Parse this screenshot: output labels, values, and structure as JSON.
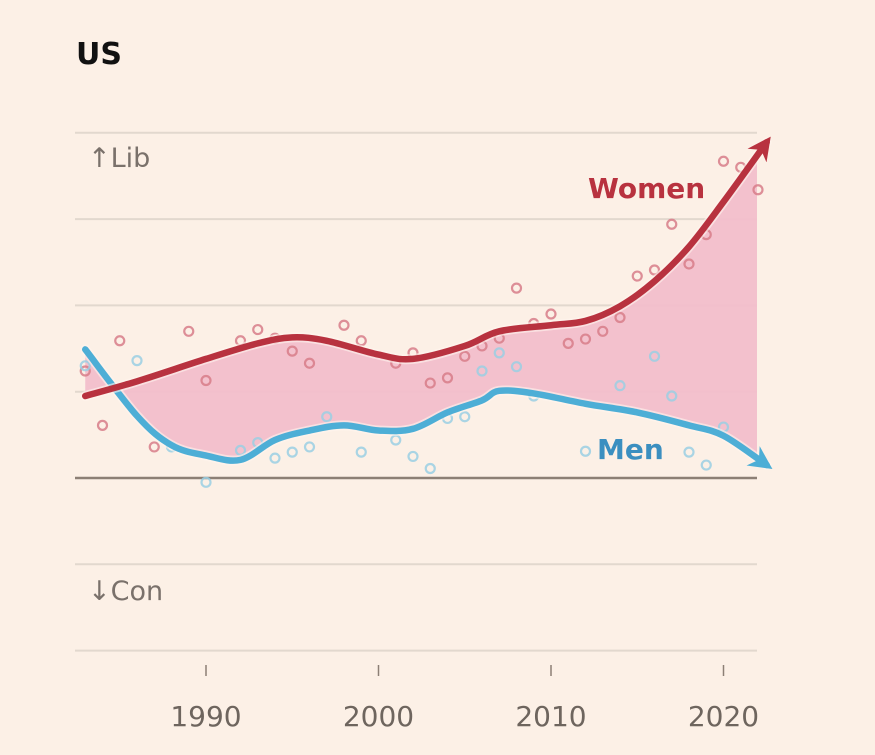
{
  "chart_data": {
    "type": "line",
    "title": "US",
    "xlabel": "",
    "ylabel": "",
    "y_top_note": "↑Lib",
    "y_bottom_note": "↓Con",
    "x_ticks": [
      1990,
      2000,
      2010,
      2020
    ],
    "x_tick_labels": [
      "1990",
      "2000",
      "2010",
      "2020"
    ],
    "xlim": [
      1982.3,
      2022.9
    ],
    "ylim": [
      -2,
      4
    ],
    "y_gridlines": [
      -2,
      -1,
      0,
      1,
      2,
      3,
      4
    ],
    "zero_line": 0,
    "grid": true,
    "legend": "inline-labels",
    "gap_fill": true,
    "colors": {
      "background": "#FCF0E6",
      "women": "#B8323F",
      "men": "#4DAED6",
      "gap_fill": "#F2BECB",
      "women_dots": "#D77C88",
      "men_dots": "#9ACFE3"
    },
    "series": [
      {
        "name": "Women",
        "label": "Women",
        "trend": [
          [
            1983,
            0.95
          ],
          [
            1986,
            1.12
          ],
          [
            1990,
            1.38
          ],
          [
            1993,
            1.56
          ],
          [
            1995,
            1.63
          ],
          [
            1997,
            1.59
          ],
          [
            2000,
            1.43
          ],
          [
            2002,
            1.38
          ],
          [
            2005,
            1.53
          ],
          [
            2007,
            1.7
          ],
          [
            2010,
            1.77
          ],
          [
            2012,
            1.82
          ],
          [
            2014,
            1.99
          ],
          [
            2016,
            2.28
          ],
          [
            2018,
            2.68
          ],
          [
            2020,
            3.2
          ],
          [
            2022.5,
            3.89
          ]
        ],
        "points": [
          [
            1983,
            1.24
          ],
          [
            1984,
            0.61
          ],
          [
            1985,
            1.59
          ],
          [
            1987,
            0.36
          ],
          [
            1989,
            1.7
          ],
          [
            1990,
            1.13
          ],
          [
            1992,
            1.59
          ],
          [
            1993,
            1.72
          ],
          [
            1994,
            1.62
          ],
          [
            1995,
            1.47
          ],
          [
            1996,
            1.33
          ],
          [
            1998,
            1.77
          ],
          [
            1999,
            1.59
          ],
          [
            2001,
            1.33
          ],
          [
            2002,
            1.45
          ],
          [
            2003,
            1.1
          ],
          [
            2004,
            1.16
          ],
          [
            2005,
            1.41
          ],
          [
            2006,
            1.53
          ],
          [
            2007,
            1.62
          ],
          [
            2008,
            2.2
          ],
          [
            2009,
            1.79
          ],
          [
            2010,
            1.9
          ],
          [
            2011,
            1.56
          ],
          [
            2012,
            1.61
          ],
          [
            2013,
            1.7
          ],
          [
            2014,
            1.86
          ],
          [
            2015,
            2.34
          ],
          [
            2016,
            2.41
          ],
          [
            2017,
            2.94
          ],
          [
            2018,
            2.48
          ],
          [
            2019,
            2.82
          ],
          [
            2020,
            3.67
          ],
          [
            2021,
            3.6
          ],
          [
            2022,
            3.34
          ]
        ]
      },
      {
        "name": "Men",
        "label": "Men",
        "trend": [
          [
            1983,
            1.49
          ],
          [
            1986,
            0.72
          ],
          [
            1988,
            0.38
          ],
          [
            1990,
            0.26
          ],
          [
            1992,
            0.21
          ],
          [
            1994,
            0.44
          ],
          [
            1996,
            0.55
          ],
          [
            1998,
            0.61
          ],
          [
            2000,
            0.55
          ],
          [
            2002,
            0.57
          ],
          [
            2004,
            0.76
          ],
          [
            2006,
            0.9
          ],
          [
            2007,
            1.01
          ],
          [
            2009,
            0.98
          ],
          [
            2012,
            0.86
          ],
          [
            2015,
            0.76
          ],
          [
            2018,
            0.61
          ],
          [
            2020,
            0.49
          ],
          [
            2022.5,
            0.15
          ]
        ],
        "points": [
          [
            1983,
            1.3
          ],
          [
            1986,
            1.36
          ],
          [
            1988,
            0.36
          ],
          [
            1990,
            -0.05
          ],
          [
            1992,
            0.32
          ],
          [
            1993,
            0.41
          ],
          [
            1994,
            0.23
          ],
          [
            1995,
            0.3
          ],
          [
            1996,
            0.36
          ],
          [
            1997,
            0.71
          ],
          [
            1999,
            0.3
          ],
          [
            2001,
            0.44
          ],
          [
            2002,
            0.25
          ],
          [
            2003,
            0.11
          ],
          [
            2004,
            0.69
          ],
          [
            2005,
            0.71
          ],
          [
            2006,
            1.24
          ],
          [
            2007,
            1.45
          ],
          [
            2008,
            1.29
          ],
          [
            2009,
            0.95
          ],
          [
            2012,
            0.31
          ],
          [
            2014,
            1.07
          ],
          [
            2016,
            1.41
          ],
          [
            2017,
            0.95
          ],
          [
            2018,
            0.3
          ],
          [
            2019,
            0.15
          ],
          [
            2020,
            0.59
          ]
        ]
      }
    ]
  }
}
